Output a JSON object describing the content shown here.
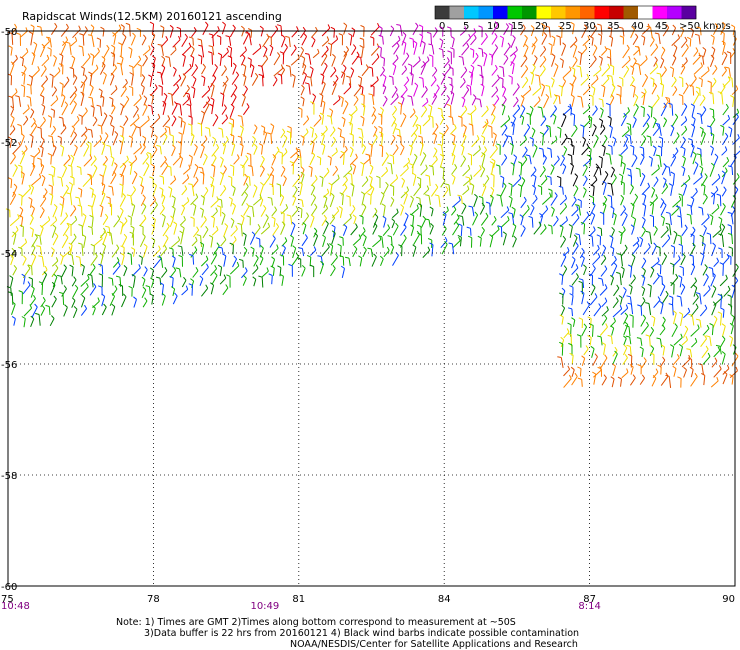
{
  "title": "Rapidscat Winds(12.5KM) 20160121 ascending",
  "legend": {
    "labels": [
      "0",
      "5",
      "10",
      "15",
      "20",
      "25",
      "30",
      "35",
      "40",
      "45",
      ">50 knots"
    ],
    "colors": [
      "#3c3c3c",
      "#a0a0a0",
      "#00c8ff",
      "#0096ff",
      "#0000ff",
      "#00c800",
      "#009600",
      "#ffff00",
      "#ffc800",
      "#ff9600",
      "#ff6400",
      "#ff0000",
      "#c80000",
      "#a05a00",
      "#ffffff",
      "#ff00ff",
      "#b400ff",
      "#5a00a0"
    ]
  },
  "map": {
    "lon_ticks": [
      "75",
      "78",
      "81",
      "84",
      "87",
      "90"
    ],
    "lat_ticks": [
      "-50",
      "-52",
      "-54",
      "-56",
      "-58",
      "-60"
    ],
    "lon_range": [
      75,
      90
    ],
    "lat_range": [
      -50,
      -60
    ],
    "pass_times": [
      {
        "label": "10:48",
        "lon": 75
      },
      {
        "label": "10:49",
        "lon": 80.3
      },
      {
        "label": "8:14",
        "lon": 87
      }
    ]
  },
  "notes": {
    "line1": "Note: 1) Times are GMT 2)Times along bottom correspond to measurement at ~50S",
    "line2": "3)Data buffer is 22 hrs from 20160121 4) Black wind barbs indicate possible contamination",
    "line3": "NOAA/NESDIS/Center for Satellite Applications and Research"
  }
}
